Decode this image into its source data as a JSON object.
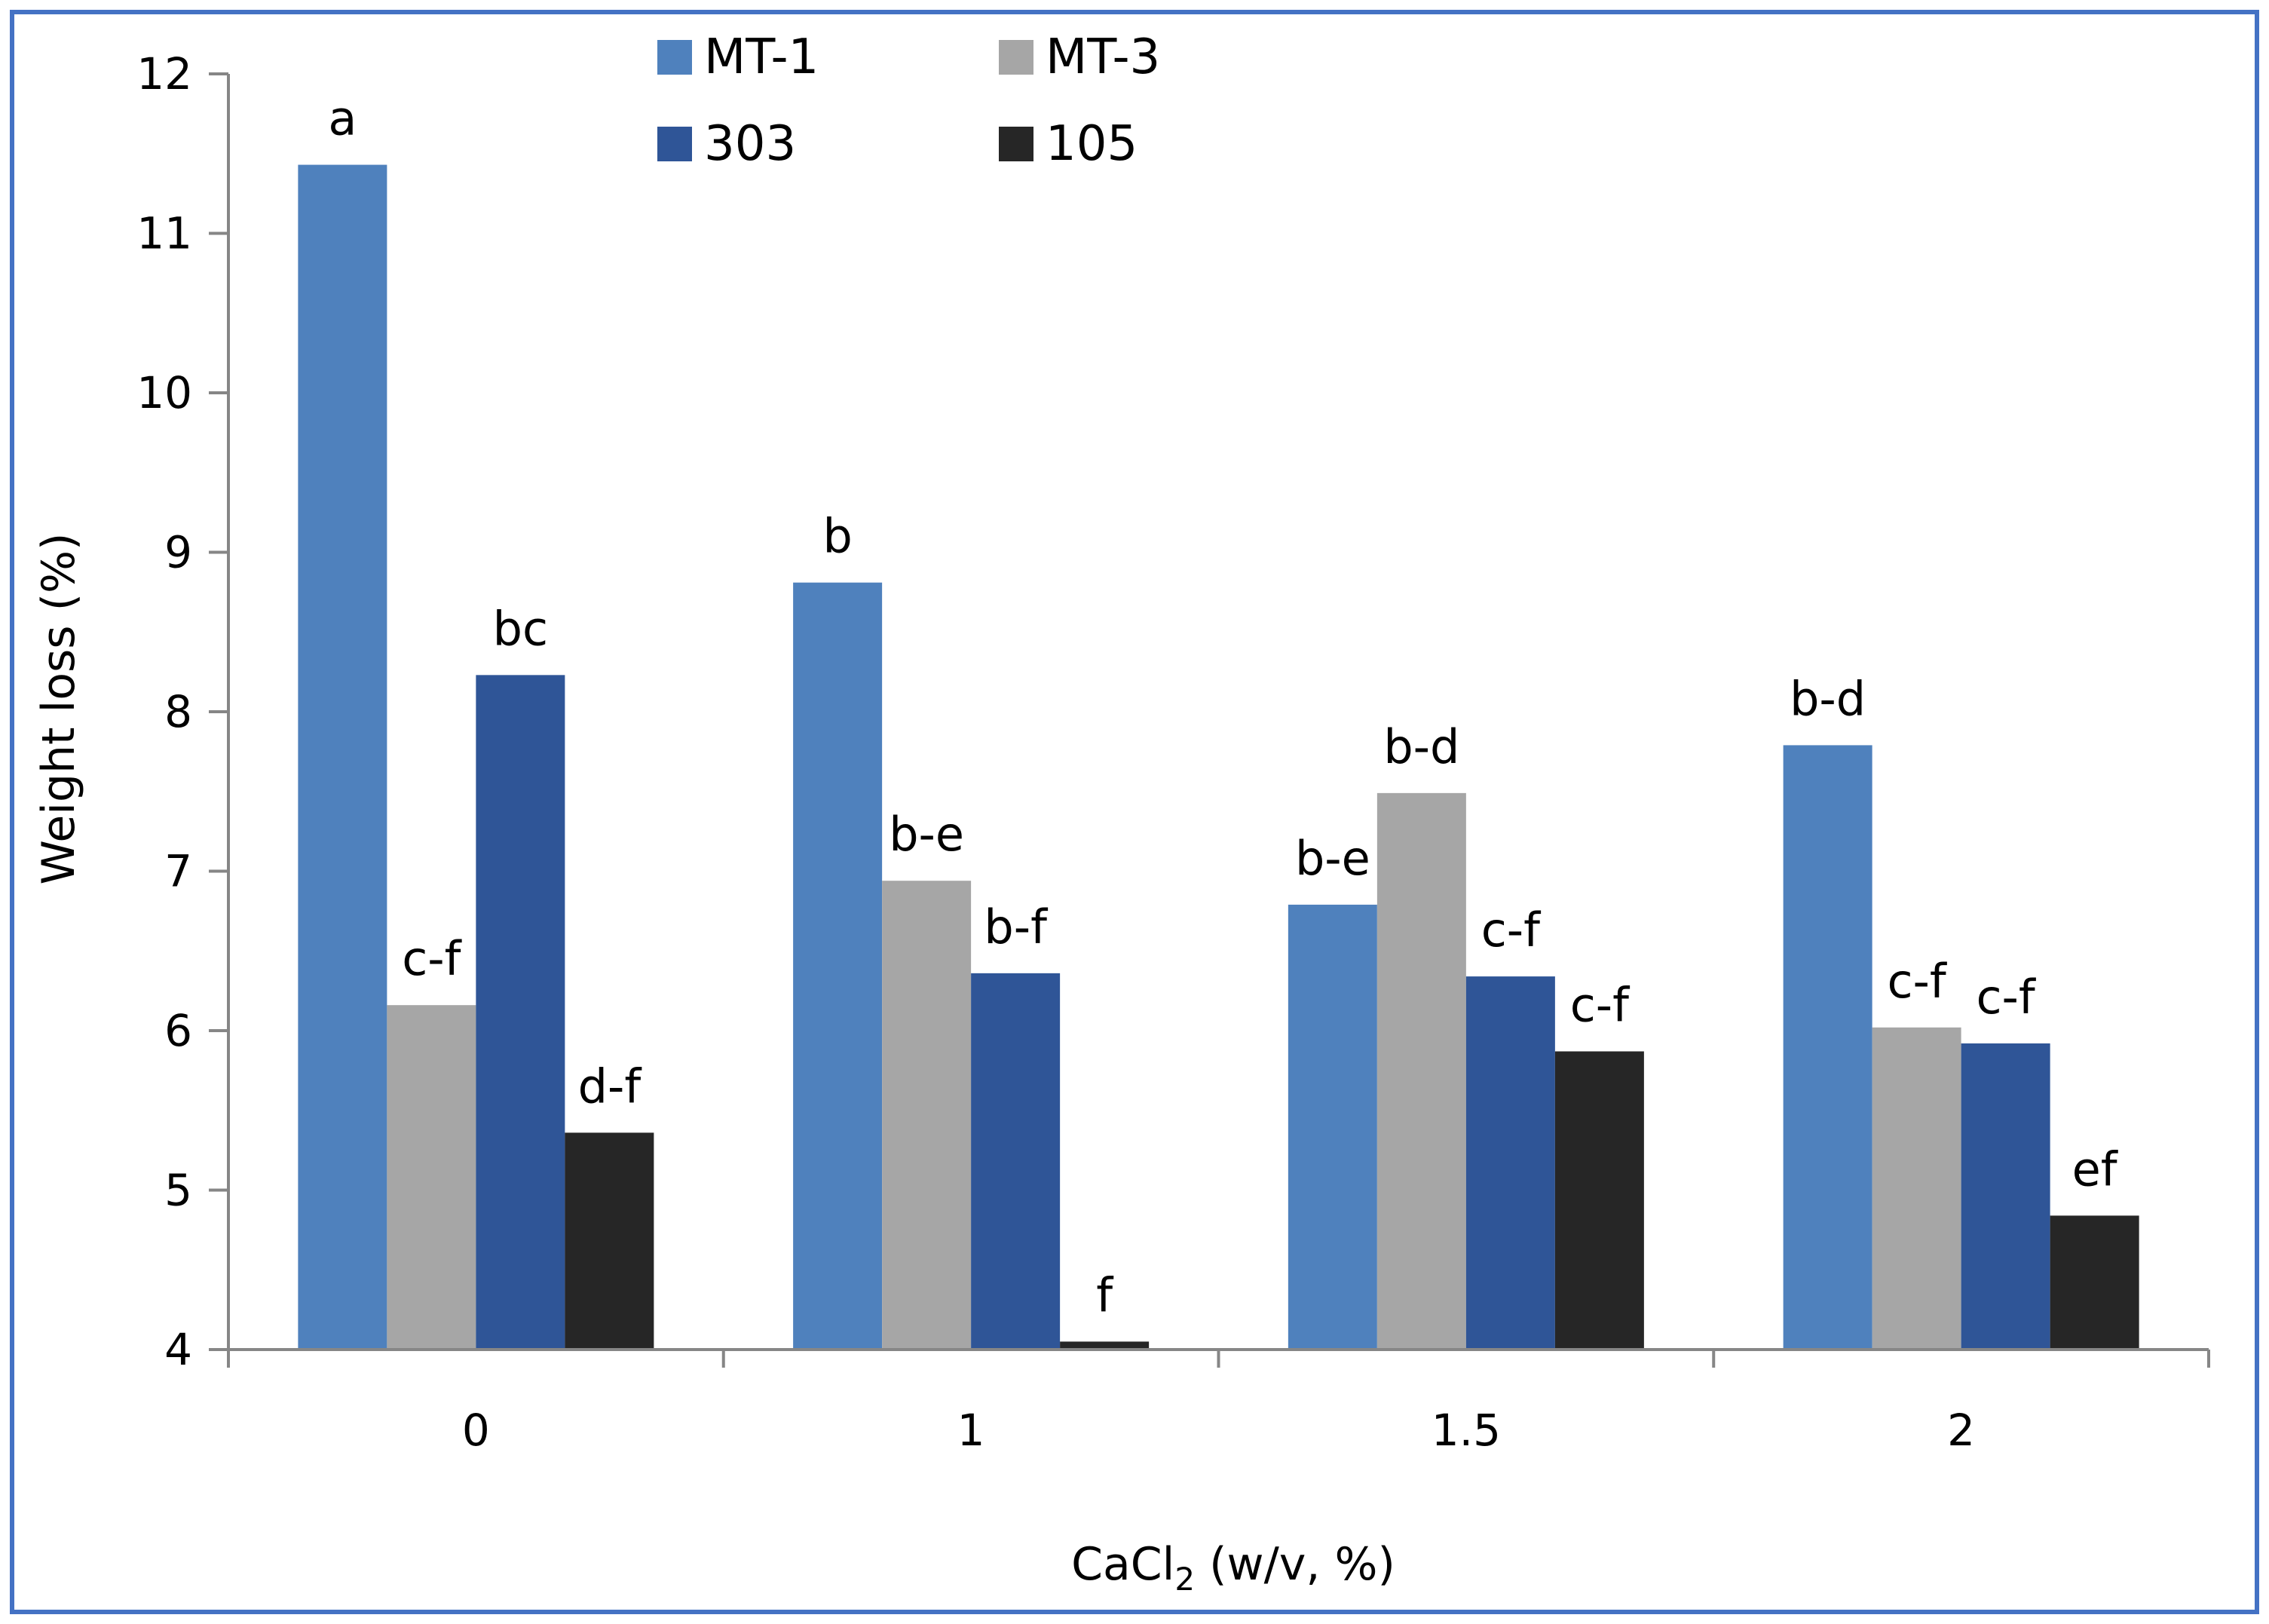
{
  "chart_data": {
    "type": "bar",
    "title": "",
    "xlabel": "CaCl",
    "xlabel_subscript": "2",
    "xlabel_suffix": " (w/v, %)",
    "ylabel": "Weight loss (%)",
    "ylim": [
      4,
      12
    ],
    "yticks": [
      4,
      5,
      6,
      7,
      8,
      9,
      10,
      11,
      12
    ],
    "grid": false,
    "legend_position": "top",
    "categories": [
      "0",
      "1",
      "1.5",
      "2"
    ],
    "series": [
      {
        "name": "MT-1",
        "color": "#4f81bd",
        "values": [
          11.43,
          8.81,
          6.79,
          7.79
        ],
        "labels": [
          "a",
          "b",
          "b-e",
          "b-d"
        ]
      },
      {
        "name": "MT-3",
        "color": "#a6a6a6",
        "values": [
          6.16,
          6.94,
          7.49,
          6.02
        ],
        "labels": [
          "c-f",
          "b-e",
          "b-d",
          "c-f"
        ]
      },
      {
        "name": "303",
        "color": "#2f5597",
        "values": [
          8.23,
          6.36,
          6.34,
          5.92
        ],
        "labels": [
          "bc",
          "b-f",
          "c-f",
          "c-f"
        ]
      },
      {
        "name": "105",
        "color": "#262626",
        "values": [
          5.36,
          4.05,
          5.87,
          4.84
        ],
        "labels": [
          "d-f",
          "f",
          "c-f",
          "ef"
        ]
      }
    ],
    "colors": {
      "frame": "#4472c4",
      "axis": "#868686"
    }
  }
}
